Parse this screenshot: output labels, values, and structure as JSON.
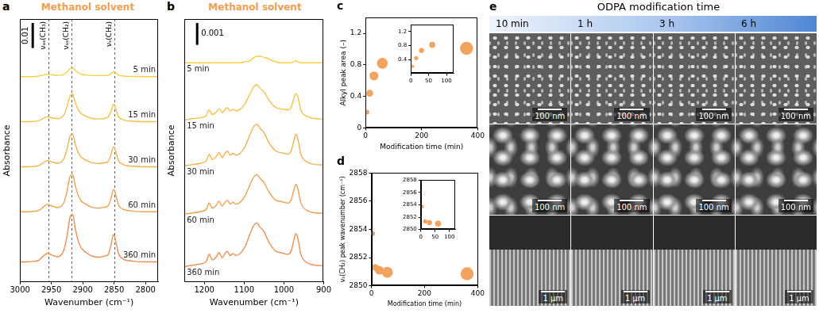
{
  "chart_data": [
    {
      "panel": "a",
      "type": "line",
      "title": "Methanol solvent",
      "x_label": "Wavenumber (cm⁻¹)",
      "y_label": "Absorbance",
      "x": [
        3000,
        2990,
        2980,
        2970,
        2962,
        2956,
        2950,
        2940,
        2930,
        2925,
        2920,
        2916,
        2912,
        2905,
        2895,
        2885,
        2875,
        2866,
        2860,
        2855,
        2851,
        2847,
        2843,
        2835,
        2820,
        2800,
        2780
      ],
      "xlim": [
        3000,
        2780
      ],
      "xticks": [
        3000,
        2950,
        2900,
        2850,
        2800
      ],
      "ylim": [
        0,
        0.105
      ],
      "tick_labels": "x",
      "grid": false,
      "scale_bar": 0.01,
      "annotations": [
        {
          "x": 2955,
          "label": "νₐₛ(CH₃)"
        },
        {
          "x": 2918,
          "label": "νₐₛ(CH₂)"
        },
        {
          "x": 2850,
          "label": "νₛ(CH₂)"
        }
      ],
      "series": [
        {
          "name": "5 min",
          "color": "#f7d046",
          "values": [
            0.082,
            0.082,
            0.082,
            0.0822,
            0.0827,
            0.083,
            0.0828,
            0.0825,
            0.0829,
            0.0839,
            0.0853,
            0.0855,
            0.0845,
            0.0832,
            0.0827,
            0.0824,
            0.0824,
            0.0824,
            0.0825,
            0.0832,
            0.084,
            0.0834,
            0.0826,
            0.0822,
            0.0821,
            0.082,
            0.082
          ]
        },
        {
          "name": "15 min",
          "color": "#f6c04a",
          "values": [
            0.064,
            0.064,
            0.0641,
            0.0644,
            0.0654,
            0.066,
            0.0656,
            0.0652,
            0.0668,
            0.0701,
            0.0744,
            0.075,
            0.0717,
            0.0679,
            0.0662,
            0.0653,
            0.0651,
            0.0653,
            0.0658,
            0.0682,
            0.071,
            0.0689,
            0.0661,
            0.0647,
            0.0642,
            0.064,
            0.064
          ]
        },
        {
          "name": "30 min",
          "color": "#f4b04c",
          "values": [
            0.046,
            0.046,
            0.0461,
            0.0465,
            0.0478,
            0.0485,
            0.048,
            0.0474,
            0.0493,
            0.0532,
            0.0584,
            0.059,
            0.0551,
            0.0506,
            0.0486,
            0.0476,
            0.0473,
            0.0476,
            0.048,
            0.0508,
            0.054,
            0.0516,
            0.0484,
            0.0468,
            0.0462,
            0.046,
            0.046
          ]
        },
        {
          "name": "60 min",
          "color": "#f2a04e",
          "values": [
            0.028,
            0.028,
            0.0282,
            0.0286,
            0.0301,
            0.031,
            0.0304,
            0.0297,
            0.0318,
            0.0363,
            0.0423,
            0.043,
            0.0385,
            0.0333,
            0.031,
            0.0298,
            0.0295,
            0.0298,
            0.0303,
            0.0334,
            0.037,
            0.0343,
            0.0307,
            0.0289,
            0.0283,
            0.028,
            0.028
          ]
        },
        {
          "name": "360 min",
          "color": "#ef8f50",
          "values": [
            0.008,
            0.008,
            0.0082,
            0.0087,
            0.0105,
            0.0115,
            0.0108,
            0.01,
            0.0128,
            0.0185,
            0.0261,
            0.027,
            0.0213,
            0.0147,
            0.0118,
            0.0103,
            0.0099,
            0.0103,
            0.0108,
            0.0146,
            0.019,
            0.0157,
            0.0113,
            0.0091,
            0.0083,
            0.008,
            0.008
          ]
        }
      ]
    },
    {
      "panel": "b",
      "type": "line",
      "title": "Methanol solvent",
      "x_label": "Wavenumber (cm⁻¹)",
      "y_label": "Absorbance",
      "x": [
        1250,
        1230,
        1210,
        1195,
        1188,
        1180,
        1170,
        1163,
        1155,
        1148,
        1142,
        1135,
        1128,
        1120,
        1110,
        1098,
        1085,
        1075,
        1068,
        1060,
        1050,
        1040,
        1030,
        1020,
        1010,
        1000,
        990,
        982,
        975,
        970,
        965,
        958,
        950,
        935,
        920,
        900
      ],
      "xlim": [
        1250,
        900
      ],
      "xticks": [
        1200,
        1100,
        1000,
        900
      ],
      "ylim": [
        0,
        0.012
      ],
      "tick_labels": "x",
      "grid": false,
      "scale_bar": 0.001,
      "series": [
        {
          "name": "5 min",
          "color": "#f7d046",
          "values": [
            0.01,
            0.01,
            0.01,
            0.01,
            0.01,
            0.01,
            0.01,
            0.01,
            0.01,
            0.01,
            0.01,
            0.01,
            0.01,
            0.01,
            0.01,
            0.01005,
            0.0101,
            0.01025,
            0.0103,
            0.0103,
            0.01025,
            0.0102,
            0.0101,
            0.01005,
            0.01,
            0.01,
            0.01,
            0.01,
            0.01005,
            0.0101,
            0.01005,
            0.01,
            0.01,
            0.01,
            0.01,
            0.01
          ]
        },
        {
          "name": "15 min",
          "color": "#f6c04a",
          "values": [
            0.0074,
            0.00745,
            0.0075,
            0.0076,
            0.00785,
            0.00764,
            0.00775,
            0.00791,
            0.00772,
            0.00788,
            0.00796,
            0.0078,
            0.00788,
            0.0078,
            0.00788,
            0.00812,
            0.0086,
            0.00892,
            0.009,
            0.00884,
            0.00868,
            0.00836,
            0.00812,
            0.00796,
            0.00791,
            0.00788,
            0.00785,
            0.00796,
            0.00836,
            0.0086,
            0.00844,
            0.00788,
            0.00764,
            0.0075,
            0.00745,
            0.00743
          ]
        },
        {
          "name": "30 min",
          "color": "#f4b04c",
          "values": [
            0.0053,
            0.00536,
            0.00541,
            0.00553,
            0.00583,
            0.00559,
            0.00572,
            0.00591,
            0.00568,
            0.00587,
            0.00597,
            0.00578,
            0.00587,
            0.00578,
            0.00587,
            0.00616,
            0.00673,
            0.00711,
            0.0072,
            0.00701,
            0.00682,
            0.00644,
            0.00616,
            0.00597,
            0.00591,
            0.00587,
            0.00583,
            0.00597,
            0.00644,
            0.00673,
            0.00654,
            0.00587,
            0.00559,
            0.00541,
            0.00536,
            0.00534
          ]
        },
        {
          "name": "60 min",
          "color": "#f2a04e",
          "values": [
            0.0031,
            0.00315,
            0.00321,
            0.00332,
            0.0036,
            0.00337,
            0.0035,
            0.00368,
            0.00346,
            0.00364,
            0.00373,
            0.00355,
            0.00364,
            0.00355,
            0.00364,
            0.00391,
            0.00445,
            0.00481,
            0.0049,
            0.00472,
            0.00454,
            0.00418,
            0.00391,
            0.00373,
            0.00368,
            0.00364,
            0.0036,
            0.00373,
            0.00418,
            0.00445,
            0.00427,
            0.00364,
            0.00337,
            0.00321,
            0.00315,
            0.00314
          ]
        },
        {
          "name": "360 min",
          "color": "#ef8f50",
          "values": [
            0.0007,
            0.00076,
            0.00082,
            0.00094,
            0.00126,
            0.001,
            0.00114,
            0.00134,
            0.0011,
            0.0013,
            0.0014,
            0.0012,
            0.0013,
            0.0012,
            0.0013,
            0.0016,
            0.0022,
            0.0026,
            0.0027,
            0.0025,
            0.0023,
            0.0019,
            0.0016,
            0.0014,
            0.00134,
            0.0013,
            0.00126,
            0.0014,
            0.0019,
            0.0022,
            0.002,
            0.0013,
            0.001,
            0.00082,
            0.00076,
            0.00074
          ]
        }
      ]
    },
    {
      "panel": "c",
      "type": "scatter",
      "x_label": "Modification time (min)",
      "y_label": "Alkyl peak area (–)",
      "x": [
        5,
        15,
        30,
        60,
        360
      ],
      "values": [
        0.2,
        0.44,
        0.66,
        0.82,
        1.01
      ],
      "color": "#f2a35e",
      "marker": "circle",
      "xlim": [
        0,
        400
      ],
      "xticks": [
        0,
        200,
        400
      ],
      "ylim": [
        0,
        1.4
      ],
      "yticks": [
        0,
        0.4,
        0.8,
        1.2
      ],
      "grid": false,
      "inset": {
        "xlim": [
          0,
          120
        ],
        "xticks": [
          0,
          50,
          100
        ],
        "ylim": [
          0,
          1.4
        ],
        "yticks": [
          0.4,
          0.8,
          1.2
        ]
      }
    },
    {
      "panel": "d",
      "type": "scatter",
      "x_label": "Modification time (min)",
      "y_label": "νₛ(CH₂) peak wavenumber (cm⁻¹)",
      "x": [
        5,
        15,
        30,
        60,
        360
      ],
      "values": [
        2853.7,
        2851.3,
        2851.1,
        2850.95,
        2850.85
      ],
      "color": "#f2a35e",
      "marker": "circle",
      "xlim": [
        0,
        400
      ],
      "xticks": [
        0,
        200,
        400
      ],
      "ylim": [
        2850,
        2858
      ],
      "yticks": [
        2850,
        2852,
        2854,
        2856,
        2858
      ],
      "grid": false,
      "inset": {
        "xlim": [
          0,
          120
        ],
        "xticks": [
          0,
          50,
          100
        ],
        "ylim": [
          2850,
          2858
        ],
        "yticks": [
          2850,
          2852,
          2854,
          2856,
          2858
        ]
      }
    }
  ],
  "sem_images": {
    "panel": "e",
    "title": "ODPA modification time",
    "columns": [
      "10 min",
      "1 h",
      "3 h",
      "6 h"
    ],
    "scale_bars": [
      [
        "100 nm",
        "100 nm",
        "100 nm",
        "100 nm"
      ],
      [
        "100 nm",
        "100 nm",
        "100 nm",
        "100 nm"
      ],
      [
        "1 μm",
        "1 μm",
        "1 μm",
        "1 μm"
      ]
    ]
  }
}
